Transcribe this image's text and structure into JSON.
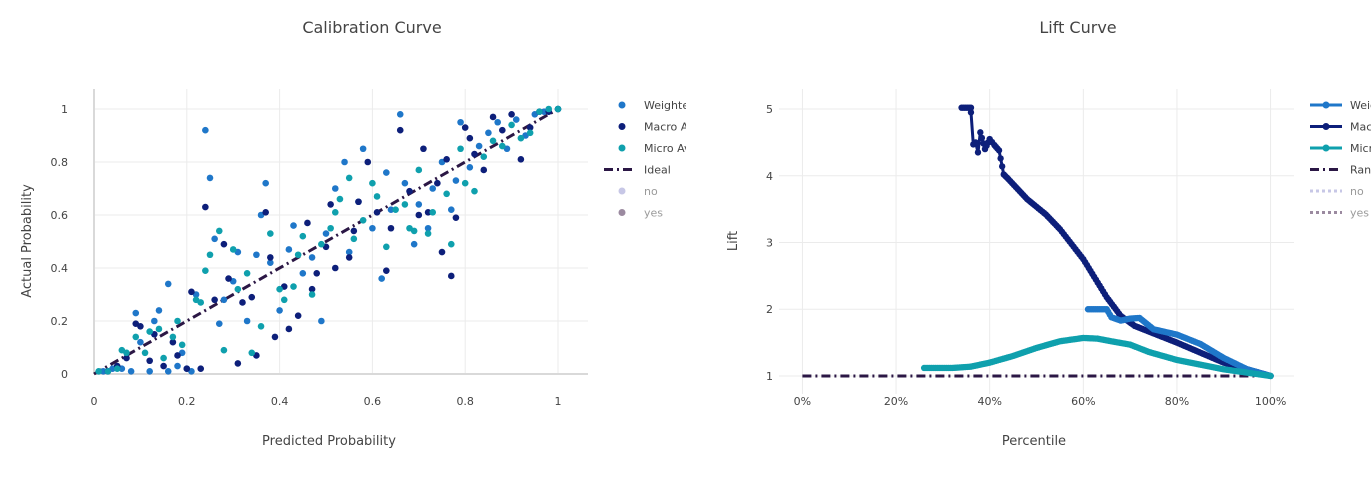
{
  "chart_data": [
    {
      "type": "scatter",
      "title": "Calibration Curve",
      "xlabel": "Predicted Probability",
      "ylabel": "Actual Probability",
      "xlim": [
        0,
        1
      ],
      "ylim": [
        0,
        1
      ],
      "xticks": [
        "0",
        "0.2",
        "0.4",
        "0.6",
        "0.8",
        "1"
      ],
      "yticks": [
        "0",
        "0.2",
        "0.4",
        "0.6",
        "0.8",
        "1"
      ],
      "colors": {
        "weighted": "#1f77c9",
        "macro": "#0d1f7a",
        "micro": "#0fa0ad",
        "ideal": "#2b1745",
        "no": "#c7c7e6",
        "yes": "#9b8aa0"
      },
      "legend": [
        {
          "key": "weighted",
          "label": "Weighted Average",
          "symbol": "marker",
          "color": "#1f77c9"
        },
        {
          "key": "macro",
          "label": "Macro Average",
          "symbol": "marker",
          "color": "#0d1f7a"
        },
        {
          "key": "micro",
          "label": "Micro Average",
          "symbol": "marker",
          "color": "#0fa0ad"
        },
        {
          "key": "ideal",
          "label": "Ideal",
          "symbol": "dashdot",
          "color": "#2b1745"
        },
        {
          "key": "no",
          "label": "no",
          "symbol": "marker",
          "color": "#c7c7e6"
        },
        {
          "key": "yes",
          "label": "yes",
          "symbol": "marker",
          "color": "#9b8aa0"
        }
      ],
      "ideal": {
        "x": [
          0,
          1
        ],
        "y": [
          0,
          1
        ]
      },
      "series": [
        {
          "name": "Weighted Average",
          "color": "#1f77c9",
          "points": [
            [
              0.02,
              0.01
            ],
            [
              0.04,
              0.02
            ],
            [
              0.06,
              0.02
            ],
            [
              0.08,
              0.01
            ],
            [
              0.09,
              0.23
            ],
            [
              0.1,
              0.12
            ],
            [
              0.12,
              0.01
            ],
            [
              0.13,
              0.2
            ],
            [
              0.14,
              0.24
            ],
            [
              0.16,
              0.01
            ],
            [
              0.16,
              0.34
            ],
            [
              0.18,
              0.03
            ],
            [
              0.19,
              0.08
            ],
            [
              0.2,
              0.02
            ],
            [
              0.21,
              0.01
            ],
            [
              0.22,
              0.3
            ],
            [
              0.24,
              0.92
            ],
            [
              0.25,
              0.74
            ],
            [
              0.26,
              0.51
            ],
            [
              0.27,
              0.19
            ],
            [
              0.28,
              0.28
            ],
            [
              0.3,
              0.35
            ],
            [
              0.31,
              0.46
            ],
            [
              0.33,
              0.2
            ],
            [
              0.35,
              0.45
            ],
            [
              0.36,
              0.6
            ],
            [
              0.37,
              0.72
            ],
            [
              0.38,
              0.42
            ],
            [
              0.4,
              0.24
            ],
            [
              0.42,
              0.47
            ],
            [
              0.43,
              0.56
            ],
            [
              0.45,
              0.38
            ],
            [
              0.47,
              0.44
            ],
            [
              0.49,
              0.2
            ],
            [
              0.5,
              0.53
            ],
            [
              0.52,
              0.7
            ],
            [
              0.54,
              0.8
            ],
            [
              0.55,
              0.46
            ],
            [
              0.57,
              0.65
            ],
            [
              0.58,
              0.85
            ],
            [
              0.6,
              0.55
            ],
            [
              0.62,
              0.36
            ],
            [
              0.63,
              0.76
            ],
            [
              0.64,
              0.62
            ],
            [
              0.66,
              0.98
            ],
            [
              0.67,
              0.72
            ],
            [
              0.69,
              0.49
            ],
            [
              0.7,
              0.64
            ],
            [
              0.72,
              0.55
            ],
            [
              0.73,
              0.7
            ],
            [
              0.75,
              0.8
            ],
            [
              0.77,
              0.62
            ],
            [
              0.78,
              0.73
            ],
            [
              0.79,
              0.95
            ],
            [
              0.81,
              0.78
            ],
            [
              0.83,
              0.86
            ],
            [
              0.85,
              0.91
            ],
            [
              0.87,
              0.95
            ],
            [
              0.89,
              0.85
            ],
            [
              0.91,
              0.96
            ],
            [
              0.93,
              0.9
            ],
            [
              0.95,
              0.98
            ],
            [
              0.97,
              0.99
            ],
            [
              1.0,
              1.0
            ]
          ]
        },
        {
          "name": "Macro Average",
          "color": "#0d1f7a",
          "points": [
            [
              0.03,
              0.01
            ],
            [
              0.05,
              0.03
            ],
            [
              0.07,
              0.06
            ],
            [
              0.09,
              0.19
            ],
            [
              0.1,
              0.18
            ],
            [
              0.12,
              0.05
            ],
            [
              0.13,
              0.15
            ],
            [
              0.15,
              0.03
            ],
            [
              0.17,
              0.12
            ],
            [
              0.18,
              0.07
            ],
            [
              0.2,
              0.02
            ],
            [
              0.21,
              0.31
            ],
            [
              0.23,
              0.02
            ],
            [
              0.24,
              0.63
            ],
            [
              0.26,
              0.28
            ],
            [
              0.28,
              0.49
            ],
            [
              0.29,
              0.36
            ],
            [
              0.31,
              0.04
            ],
            [
              0.32,
              0.27
            ],
            [
              0.34,
              0.29
            ],
            [
              0.35,
              0.07
            ],
            [
              0.37,
              0.61
            ],
            [
              0.38,
              0.44
            ],
            [
              0.39,
              0.14
            ],
            [
              0.41,
              0.33
            ],
            [
              0.42,
              0.17
            ],
            [
              0.44,
              0.22
            ],
            [
              0.46,
              0.57
            ],
            [
              0.47,
              0.32
            ],
            [
              0.48,
              0.38
            ],
            [
              0.5,
              0.48
            ],
            [
              0.51,
              0.64
            ],
            [
              0.52,
              0.4
            ],
            [
              0.55,
              0.44
            ],
            [
              0.56,
              0.54
            ],
            [
              0.57,
              0.65
            ],
            [
              0.59,
              0.8
            ],
            [
              0.61,
              0.61
            ],
            [
              0.63,
              0.39
            ],
            [
              0.64,
              0.55
            ],
            [
              0.66,
              0.92
            ],
            [
              0.68,
              0.69
            ],
            [
              0.7,
              0.6
            ],
            [
              0.71,
              0.85
            ],
            [
              0.72,
              0.61
            ],
            [
              0.74,
              0.72
            ],
            [
              0.75,
              0.46
            ],
            [
              0.76,
              0.81
            ],
            [
              0.77,
              0.37
            ],
            [
              0.78,
              0.59
            ],
            [
              0.8,
              0.93
            ],
            [
              0.81,
              0.89
            ],
            [
              0.82,
              0.83
            ],
            [
              0.84,
              0.77
            ],
            [
              0.86,
              0.97
            ],
            [
              0.88,
              0.92
            ],
            [
              0.9,
              0.98
            ],
            [
              0.92,
              0.81
            ],
            [
              0.94,
              0.93
            ],
            [
              0.96,
              0.99
            ],
            [
              0.98,
              0.99
            ],
            [
              1.0,
              1.0
            ]
          ]
        },
        {
          "name": "Micro Average",
          "color": "#0fa0ad",
          "points": [
            [
              0.01,
              0.01
            ],
            [
              0.03,
              0.01
            ],
            [
              0.05,
              0.02
            ],
            [
              0.06,
              0.09
            ],
            [
              0.07,
              0.08
            ],
            [
              0.09,
              0.14
            ],
            [
              0.11,
              0.08
            ],
            [
              0.12,
              0.16
            ],
            [
              0.14,
              0.17
            ],
            [
              0.15,
              0.06
            ],
            [
              0.17,
              0.14
            ],
            [
              0.18,
              0.2
            ],
            [
              0.19,
              0.11
            ],
            [
              0.22,
              0.28
            ],
            [
              0.23,
              0.27
            ],
            [
              0.24,
              0.39
            ],
            [
              0.25,
              0.45
            ],
            [
              0.27,
              0.54
            ],
            [
              0.28,
              0.09
            ],
            [
              0.3,
              0.47
            ],
            [
              0.31,
              0.32
            ],
            [
              0.33,
              0.38
            ],
            [
              0.34,
              0.08
            ],
            [
              0.36,
              0.18
            ],
            [
              0.38,
              0.53
            ],
            [
              0.4,
              0.32
            ],
            [
              0.41,
              0.28
            ],
            [
              0.43,
              0.33
            ],
            [
              0.44,
              0.45
            ],
            [
              0.45,
              0.52
            ],
            [
              0.47,
              0.3
            ],
            [
              0.49,
              0.49
            ],
            [
              0.51,
              0.55
            ],
            [
              0.52,
              0.61
            ],
            [
              0.53,
              0.66
            ],
            [
              0.55,
              0.74
            ],
            [
              0.56,
              0.51
            ],
            [
              0.58,
              0.58
            ],
            [
              0.6,
              0.72
            ],
            [
              0.61,
              0.67
            ],
            [
              0.63,
              0.48
            ],
            [
              0.65,
              0.62
            ],
            [
              0.67,
              0.64
            ],
            [
              0.68,
              0.55
            ],
            [
              0.69,
              0.54
            ],
            [
              0.7,
              0.77
            ],
            [
              0.72,
              0.53
            ],
            [
              0.73,
              0.61
            ],
            [
              0.76,
              0.68
            ],
            [
              0.77,
              0.49
            ],
            [
              0.79,
              0.85
            ],
            [
              0.8,
              0.72
            ],
            [
              0.82,
              0.69
            ],
            [
              0.84,
              0.82
            ],
            [
              0.86,
              0.88
            ],
            [
              0.88,
              0.86
            ],
            [
              0.9,
              0.94
            ],
            [
              0.92,
              0.89
            ],
            [
              0.94,
              0.91
            ],
            [
              0.96,
              0.99
            ],
            [
              0.98,
              1.0
            ],
            [
              1.0,
              1.0
            ]
          ]
        }
      ]
    },
    {
      "type": "line",
      "title": "Lift Curve",
      "xlabel": "Percentile",
      "ylabel": "Lift",
      "xlim": [
        -0.05,
        1.05
      ],
      "ylim": [
        0.73,
        5.3
      ],
      "xticks": [
        "0%",
        "20%",
        "40%",
        "60%",
        "80%",
        "100%"
      ],
      "yticks": [
        "1",
        "2",
        "3",
        "4",
        "5"
      ],
      "legend": [
        {
          "key": "weighted",
          "label": "Weighted Average",
          "symbol": "line-marker",
          "color": "#1f77c9"
        },
        {
          "key": "macro",
          "label": "Macro Average",
          "symbol": "line-marker",
          "color": "#0d1f7a"
        },
        {
          "key": "micro",
          "label": "Micro Average",
          "symbol": "line-marker",
          "color": "#0fa0ad"
        },
        {
          "key": "random",
          "label": "Random",
          "symbol": "dashdot",
          "color": "#2b1745"
        },
        {
          "key": "no",
          "label": "no",
          "symbol": "dot",
          "color": "#c7c7e6"
        },
        {
          "key": "yes",
          "label": "yes",
          "symbol": "dot",
          "color": "#9b8aa0"
        }
      ],
      "random": {
        "x": [
          0,
          1
        ],
        "y": [
          1,
          1
        ]
      },
      "series": [
        {
          "name": "Macro Average",
          "color": "#0d1f7a",
          "anchors": [
            [
              0.34,
              5.02
            ],
            [
              0.36,
              5.02
            ],
            [
              0.36,
              4.95
            ],
            [
              0.365,
              4.47
            ],
            [
              0.37,
              4.5
            ],
            [
              0.375,
              4.35
            ],
            [
              0.38,
              4.65
            ],
            [
              0.39,
              4.4
            ],
            [
              0.4,
              4.55
            ],
            [
              0.41,
              4.46
            ],
            [
              0.42,
              4.38
            ],
            [
              0.43,
              4.02
            ],
            [
              0.44,
              3.95
            ],
            [
              0.48,
              3.65
            ],
            [
              0.52,
              3.42
            ],
            [
              0.55,
              3.2
            ],
            [
              0.6,
              2.75
            ],
            [
              0.65,
              2.18
            ],
            [
              0.68,
              1.9
            ],
            [
              0.71,
              1.75
            ],
            [
              0.8,
              1.5
            ],
            [
              0.9,
              1.2
            ],
            [
              1.0,
              1.0
            ]
          ]
        },
        {
          "name": "Weighted Average",
          "color": "#1f77c9",
          "anchors": [
            [
              0.61,
              2.0
            ],
            [
              0.65,
              2.0
            ],
            [
              0.66,
              1.88
            ],
            [
              0.68,
              1.83
            ],
            [
              0.7,
              1.86
            ],
            [
              0.72,
              1.87
            ],
            [
              0.75,
              1.7
            ],
            [
              0.8,
              1.62
            ],
            [
              0.85,
              1.48
            ],
            [
              0.9,
              1.27
            ],
            [
              0.95,
              1.1
            ],
            [
              1.0,
              1.0
            ]
          ]
        },
        {
          "name": "Micro Average",
          "color": "#0fa0ad",
          "anchors": [
            [
              0.26,
              1.12
            ],
            [
              0.32,
              1.12
            ],
            [
              0.36,
              1.14
            ],
            [
              0.4,
              1.2
            ],
            [
              0.45,
              1.3
            ],
            [
              0.5,
              1.42
            ],
            [
              0.55,
              1.52
            ],
            [
              0.6,
              1.57
            ],
            [
              0.63,
              1.56
            ],
            [
              0.66,
              1.52
            ],
            [
              0.7,
              1.47
            ],
            [
              0.74,
              1.36
            ],
            [
              0.8,
              1.24
            ],
            [
              0.9,
              1.1
            ],
            [
              1.0,
              1.0
            ]
          ]
        }
      ]
    }
  ]
}
